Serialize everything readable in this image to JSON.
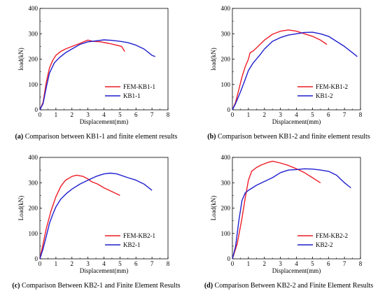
{
  "chart_data": [
    {
      "type": "line",
      "caption_letter": "(a)",
      "caption_text": " Comparison between KB1-1 and finite element results",
      "xlabel": "Displacement(mm)",
      "ylabel": "load(kN)",
      "xlim": [
        0,
        8
      ],
      "ylim": [
        0,
        400
      ],
      "xticks": [
        0,
        1,
        2,
        3,
        4,
        5,
        6,
        7,
        8
      ],
      "yticks": [
        0,
        100,
        200,
        300,
        400
      ],
      "legend_position": "bottom-right",
      "series": [
        {
          "name": "FEM-KB1-1",
          "color": "#ee1c25",
          "points": [
            [
              0,
              0
            ],
            [
              0.2,
              30
            ],
            [
              0.4,
              110
            ],
            [
              0.6,
              165
            ],
            [
              0.8,
              195
            ],
            [
              1.0,
              215
            ],
            [
              1.3,
              230
            ],
            [
              1.6,
              240
            ],
            [
              2.0,
              250
            ],
            [
              2.5,
              262
            ],
            [
              3.0,
              275
            ],
            [
              3.3,
              270
            ],
            [
              3.8,
              268
            ],
            [
              4.3,
              262
            ],
            [
              4.8,
              255
            ],
            [
              5.1,
              250
            ],
            [
              5.3,
              230
            ]
          ]
        },
        {
          "name": "KB1-1",
          "color": "#1f1fcf",
          "points": [
            [
              0,
              0
            ],
            [
              0.2,
              25
            ],
            [
              0.4,
              90
            ],
            [
              0.6,
              145
            ],
            [
              0.9,
              185
            ],
            [
              1.2,
              205
            ],
            [
              1.6,
              225
            ],
            [
              2.0,
              240
            ],
            [
              2.5,
              258
            ],
            [
              3.0,
              268
            ],
            [
              3.5,
              272
            ],
            [
              4.0,
              276
            ],
            [
              4.5,
              274
            ],
            [
              5.0,
              270
            ],
            [
              5.5,
              265
            ],
            [
              6.0,
              255
            ],
            [
              6.5,
              240
            ],
            [
              7.0,
              215
            ],
            [
              7.2,
              210
            ]
          ]
        }
      ]
    },
    {
      "type": "line",
      "caption_letter": "(b)",
      "caption_text": " Comparison between KB1-2 and finite element results",
      "xlabel": "Displacement(mm)",
      "ylabel": "load(kN)",
      "xlim": [
        0,
        8
      ],
      "ylim": [
        0,
        400
      ],
      "xticks": [
        0,
        1,
        2,
        3,
        4,
        5,
        6,
        7,
        8
      ],
      "yticks": [
        0,
        100,
        200,
        300,
        400
      ],
      "legend_position": "bottom-right",
      "series": [
        {
          "name": "FEM-KB1-2",
          "color": "#ee1c25",
          "points": [
            [
              0,
              0
            ],
            [
              0.2,
              30
            ],
            [
              0.4,
              80
            ],
            [
              0.6,
              130
            ],
            [
              0.8,
              170
            ],
            [
              1.0,
              200
            ],
            [
              1.1,
              225
            ],
            [
              1.3,
              232
            ],
            [
              1.6,
              250
            ],
            [
              2.0,
              275
            ],
            [
              2.5,
              298
            ],
            [
              3.0,
              310
            ],
            [
              3.5,
              315
            ],
            [
              4.0,
              310
            ],
            [
              4.5,
              300
            ],
            [
              5.0,
              290
            ],
            [
              5.5,
              275
            ],
            [
              5.9,
              258
            ]
          ]
        },
        {
          "name": "KB1-2",
          "color": "#1f1fcf",
          "points": [
            [
              0,
              0
            ],
            [
              0.2,
              25
            ],
            [
              0.5,
              70
            ],
            [
              0.8,
              120
            ],
            [
              1.0,
              155
            ],
            [
              1.3,
              185
            ],
            [
              1.7,
              215
            ],
            [
              2.0,
              240
            ],
            [
              2.5,
              270
            ],
            [
              3.0,
              285
            ],
            [
              3.5,
              295
            ],
            [
              4.0,
              300
            ],
            [
              4.5,
              305
            ],
            [
              5.0,
              306
            ],
            [
              5.5,
              300
            ],
            [
              6.0,
              290
            ],
            [
              6.5,
              270
            ],
            [
              7.0,
              250
            ],
            [
              7.5,
              225
            ],
            [
              7.8,
              210
            ]
          ]
        }
      ]
    },
    {
      "type": "line",
      "caption_letter": "(c)",
      "caption_text": " Comparison Between KB2-1 and Finite Element Results",
      "xlabel": "Displacement(mm)",
      "ylabel": "Load(kN)",
      "xlim": [
        0,
        8
      ],
      "ylim": [
        0,
        400
      ],
      "xticks": [
        0,
        1,
        2,
        3,
        4,
        5,
        6,
        7,
        8
      ],
      "yticks": [
        0,
        100,
        200,
        300,
        400
      ],
      "legend_position": "bottom-right",
      "series": [
        {
          "name": "FEM-KB2-1",
          "color": "#ee1c25",
          "points": [
            [
              0,
              0
            ],
            [
              0.2,
              60
            ],
            [
              0.4,
              120
            ],
            [
              0.7,
              190
            ],
            [
              1.0,
              245
            ],
            [
              1.3,
              285
            ],
            [
              1.6,
              310
            ],
            [
              2.0,
              325
            ],
            [
              2.3,
              330
            ],
            [
              2.7,
              325
            ],
            [
              3.0,
              315
            ],
            [
              3.2,
              305
            ],
            [
              3.6,
              295
            ],
            [
              4.0,
              280
            ],
            [
              4.5,
              265
            ],
            [
              5.0,
              250
            ]
          ]
        },
        {
          "name": "KB2-1",
          "color": "#1f1fcf",
          "points": [
            [
              0,
              0
            ],
            [
              0.2,
              40
            ],
            [
              0.4,
              90
            ],
            [
              0.6,
              140
            ],
            [
              0.8,
              175
            ],
            [
              1.0,
              205
            ],
            [
              1.3,
              235
            ],
            [
              1.7,
              260
            ],
            [
              2.0,
              275
            ],
            [
              2.5,
              295
            ],
            [
              3.0,
              310
            ],
            [
              3.5,
              325
            ],
            [
              4.0,
              335
            ],
            [
              4.4,
              338
            ],
            [
              4.8,
              335
            ],
            [
              5.5,
              320
            ],
            [
              6.0,
              310
            ],
            [
              6.5,
              295
            ],
            [
              7.0,
              270
            ]
          ]
        }
      ]
    },
    {
      "type": "line",
      "caption_letter": "(d)",
      "caption_text": " Comparison Between KB2-2 and Finite Element Results",
      "xlabel": "Displacement(mm)",
      "ylabel": "Load(kN)",
      "xlim": [
        0,
        8
      ],
      "ylim": [
        0,
        400
      ],
      "xticks": [
        0,
        1,
        2,
        3,
        4,
        5,
        6,
        7,
        8
      ],
      "yticks": [
        0,
        100,
        200,
        300,
        400
      ],
      "legend_position": "bottom-right",
      "series": [
        {
          "name": "FEM-KB2-2",
          "color": "#ee1c25",
          "points": [
            [
              0,
              0
            ],
            [
              0.3,
              60
            ],
            [
              0.6,
              160
            ],
            [
              0.8,
              240
            ],
            [
              1.0,
              310
            ],
            [
              1.2,
              345
            ],
            [
              1.5,
              360
            ],
            [
              1.8,
              370
            ],
            [
              2.0,
              375
            ],
            [
              2.2,
              380
            ],
            [
              2.5,
              385
            ],
            [
              3.0,
              378
            ],
            [
              3.5,
              368
            ],
            [
              4.0,
              355
            ],
            [
              4.5,
              340
            ],
            [
              5.0,
              320
            ],
            [
              5.5,
              300
            ]
          ]
        },
        {
          "name": "KB2-2",
          "color": "#1f1fcf",
          "points": [
            [
              0,
              0
            ],
            [
              0.2,
              50
            ],
            [
              0.4,
              150
            ],
            [
              0.6,
              230
            ],
            [
              0.8,
              260
            ],
            [
              1.0,
              270
            ],
            [
              1.5,
              290
            ],
            [
              2.0,
              305
            ],
            [
              2.5,
              320
            ],
            [
              3.0,
              340
            ],
            [
              3.5,
              350
            ],
            [
              4.0,
              352
            ],
            [
              4.5,
              355
            ],
            [
              5.0,
              354
            ],
            [
              5.5,
              350
            ],
            [
              6.0,
              345
            ],
            [
              6.5,
              330
            ],
            [
              7.0,
              300
            ],
            [
              7.4,
              280
            ]
          ]
        }
      ]
    }
  ]
}
